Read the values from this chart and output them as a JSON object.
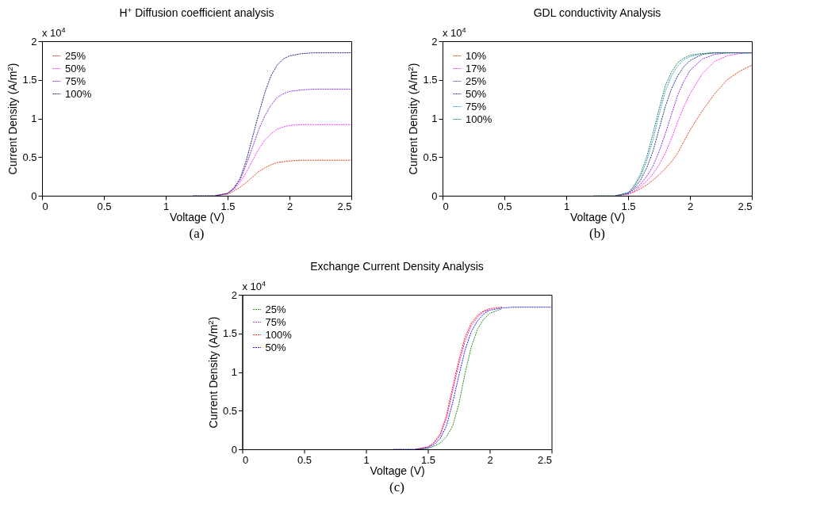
{
  "chart_data": [
    {
      "type": "line",
      "title": "H$^{+}$ Diffusion coefficient analysis",
      "xlabel": "Voltage (V)",
      "ylabel": "Current Density (A/m$^{2}$)",
      "annotations": [
        "x 10$^{4}$",
        "(a)"
      ],
      "x": [
        1.22,
        1.4,
        1.5,
        1.55,
        1.6,
        1.65,
        1.7,
        1.75,
        1.8,
        1.85,
        1.9,
        1.95,
        2.0,
        2.1,
        2.2,
        2.3,
        2.4,
        2.5
      ],
      "series": [
        {
          "name": "25%",
          "color": "#e0401a",
          "values": [
            null,
            0,
            0.02,
            0.06,
            0.11,
            0.17,
            0.24,
            0.31,
            0.36,
            0.4,
            0.43,
            0.44,
            0.45,
            0.46,
            0.46,
            0.46,
            0.46,
            0.46
          ]
        },
        {
          "name": "50%",
          "color": "#ff33ff",
          "values": [
            null,
            0,
            0.03,
            0.08,
            0.17,
            0.3,
            0.45,
            0.6,
            0.72,
            0.8,
            0.86,
            0.89,
            0.91,
            0.92,
            0.92,
            0.92,
            0.92,
            0.92
          ]
        },
        {
          "name": "75%",
          "color": "#8a2be2",
          "values": [
            null,
            0,
            0.03,
            0.09,
            0.2,
            0.4,
            0.62,
            0.85,
            1.03,
            1.17,
            1.27,
            1.32,
            1.35,
            1.37,
            1.38,
            1.38,
            1.38,
            1.38
          ]
        },
        {
          "name": "100%",
          "color": "#1a237e",
          "values": [
            0,
            0,
            0.03,
            0.1,
            0.22,
            0.45,
            0.75,
            1.05,
            1.33,
            1.55,
            1.69,
            1.77,
            1.81,
            1.84,
            1.85,
            1.85,
            1.85,
            1.85
          ]
        }
      ],
      "xlim": [
        0,
        2.5
      ],
      "xticks": [
        0,
        0.5,
        1,
        1.5,
        2,
        2.5
      ],
      "ylim": [
        0,
        2
      ],
      "yticks": [
        0,
        0.5,
        1,
        1.5,
        2
      ],
      "grid": false,
      "legend": "top left",
      "line_style": "dashed",
      "marker": "none"
    },
    {
      "type": "line",
      "title": "GDL conductivity Analysis",
      "xlabel": "Voltage (V)",
      "ylabel": "Current Density (A/m$^{2}$)",
      "annotations": [
        "x 10$^{4}$",
        "(b)"
      ],
      "x": [
        1.22,
        1.4,
        1.5,
        1.55,
        1.6,
        1.65,
        1.7,
        1.75,
        1.8,
        1.85,
        1.9,
        1.95,
        2.0,
        2.1,
        2.2,
        2.3,
        2.4,
        2.5
      ],
      "series": [
        {
          "name": "10%",
          "color": "#e0401a",
          "values": [
            null,
            0,
            0.02,
            0.05,
            0.09,
            0.14,
            0.2,
            0.27,
            0.35,
            0.44,
            0.55,
            0.7,
            0.85,
            1.1,
            1.32,
            1.5,
            1.61,
            1.69
          ]
        },
        {
          "name": "17%",
          "color": "#ff33ff",
          "values": [
            null,
            0,
            0.02,
            0.06,
            0.12,
            0.19,
            0.28,
            0.4,
            0.55,
            0.74,
            0.95,
            1.15,
            1.32,
            1.58,
            1.74,
            1.81,
            1.84,
            1.85
          ]
        },
        {
          "name": "25%",
          "color": "#8a2be2",
          "values": [
            null,
            0,
            0.03,
            0.08,
            0.15,
            0.25,
            0.38,
            0.57,
            0.8,
            1.05,
            1.3,
            1.48,
            1.62,
            1.77,
            1.83,
            1.85,
            1.85,
            1.85
          ]
        },
        {
          "name": "50%",
          "color": "#283593",
          "values": [
            null,
            0,
            0.03,
            0.1,
            0.2,
            0.36,
            0.57,
            0.86,
            1.15,
            1.38,
            1.55,
            1.67,
            1.75,
            1.83,
            1.85,
            1.85,
            1.85,
            1.85
          ]
        },
        {
          "name": "75%",
          "color": "#3399cc",
          "values": [
            null,
            0,
            0.04,
            0.12,
            0.25,
            0.45,
            0.72,
            1.05,
            1.35,
            1.55,
            1.68,
            1.76,
            1.8,
            1.84,
            1.85,
            1.85,
            1.85,
            1.85
          ]
        },
        {
          "name": "100%",
          "color": "#2e8b57",
          "values": [
            0,
            0,
            0.04,
            0.13,
            0.28,
            0.5,
            0.8,
            1.12,
            1.42,
            1.6,
            1.72,
            1.78,
            1.82,
            1.84,
            1.85,
            1.85,
            1.85,
            1.85
          ]
        }
      ],
      "xlim": [
        0,
        2.5
      ],
      "xticks": [
        0,
        0.5,
        1,
        1.5,
        2,
        2.5
      ],
      "ylim": [
        0,
        2
      ],
      "yticks": [
        0,
        0.5,
        1,
        1.5,
        2
      ],
      "grid": false,
      "legend": "top left",
      "line_style": "dashed",
      "marker": "none"
    },
    {
      "type": "line",
      "title": "Exchange Current Density Analysis",
      "xlabel": "Voltage (V)",
      "ylabel": "Current Density (A/m$^{2}$)",
      "annotations": [
        "x 10$^{4}$",
        "(c)"
      ],
      "x": [
        1.22,
        1.4,
        1.5,
        1.55,
        1.6,
        1.65,
        1.7,
        1.75,
        1.8,
        1.85,
        1.9,
        1.95,
        2.0,
        2.1,
        2.2,
        2.3,
        2.4,
        2.5
      ],
      "series": [
        {
          "name": "25%",
          "color": "#228b22",
          "values": [
            null,
            0,
            0.01,
            0.04,
            0.08,
            0.16,
            0.3,
            0.58,
            0.98,
            1.32,
            1.55,
            1.68,
            1.76,
            1.82,
            null,
            null,
            null,
            null
          ]
        },
        {
          "name": "75%",
          "color": "#cc33cc",
          "values": [
            null,
            0,
            0.03,
            0.08,
            0.18,
            0.4,
            0.75,
            1.1,
            1.4,
            1.6,
            1.71,
            1.78,
            1.81,
            null,
            null,
            null,
            null,
            null
          ]
        },
        {
          "name": "100%",
          "color": "#ff2020",
          "values": [
            null,
            0,
            0.03,
            0.09,
            0.2,
            0.44,
            0.8,
            1.15,
            1.45,
            1.63,
            1.73,
            1.79,
            1.82,
            1.84,
            null,
            null,
            null,
            null
          ]
        },
        {
          "name": "50%",
          "color": "#2020ff",
          "values": [
            0,
            0,
            0.02,
            0.06,
            0.14,
            0.3,
            0.6,
            0.95,
            1.28,
            1.52,
            1.66,
            1.75,
            1.8,
            1.83,
            1.84,
            1.84,
            1.84,
            1.84
          ]
        }
      ],
      "xlim": [
        0,
        2.5
      ],
      "xticks": [
        0,
        0.5,
        1,
        1.5,
        2,
        2.5
      ],
      "ylim": [
        0,
        2
      ],
      "yticks": [
        0,
        0.5,
        1,
        1.5,
        2
      ],
      "grid": false,
      "legend": "top left",
      "line_style": "dashed",
      "marker": "none"
    }
  ]
}
